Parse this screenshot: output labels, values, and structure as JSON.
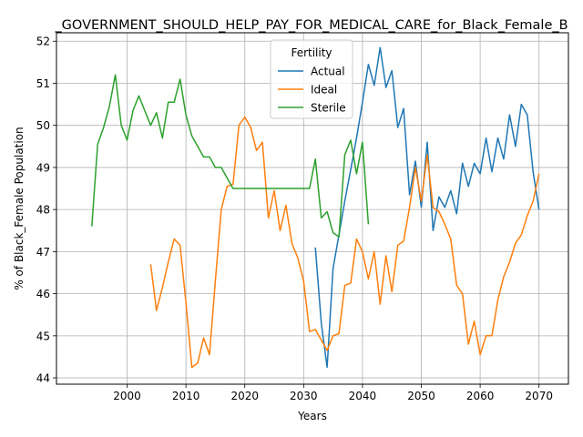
{
  "chart_data": {
    "type": "line",
    "title": "_GOVERNMENT_SHOULD_HELP_PAY_FOR_MEDICAL_CARE_for_Black_Female_B",
    "xlabel": "Years",
    "ylabel": "% of Black_Female Population",
    "xlim": [
      1988,
      2075
    ],
    "ylim": [
      43.85,
      52.2
    ],
    "xticks": [
      2000,
      2010,
      2020,
      2030,
      2040,
      2050,
      2060,
      2070
    ],
    "yticks": [
      44,
      45,
      46,
      47,
      48,
      49,
      50,
      51,
      52
    ],
    "grid": true,
    "legend": {
      "title": "Fertility",
      "placement": "upper center",
      "entries": [
        "Actual",
        "Ideal",
        "Sterile"
      ]
    },
    "series": [
      {
        "name": "Actual",
        "color": "#1f77b4",
        "x": [
          2032,
          2033,
          2034,
          2035,
          2036,
          2037,
          2038,
          2039,
          2040,
          2041,
          2042,
          2043,
          2044,
          2045,
          2046,
          2047,
          2048,
          2049,
          2050,
          2051,
          2052,
          2053,
          2054,
          2055,
          2056,
          2057,
          2058,
          2059,
          2060,
          2061,
          2062,
          2063,
          2064,
          2065,
          2066,
          2067,
          2068,
          2069,
          2070
        ],
        "y": [
          47.1,
          45.3,
          44.25,
          46.6,
          47.4,
          48.2,
          48.95,
          49.7,
          50.55,
          51.45,
          50.95,
          51.85,
          50.9,
          51.3,
          49.95,
          50.4,
          48.35,
          49.15,
          48.05,
          49.6,
          47.5,
          48.3,
          48.05,
          48.45,
          47.9,
          49.1,
          48.55,
          49.1,
          48.85,
          49.7,
          48.9,
          49.7,
          49.2,
          50.25,
          49.5,
          50.5,
          50.25,
          48.9,
          48.0
        ]
      },
      {
        "name": "Ideal",
        "color": "#ff7f0e",
        "x": [
          2004,
          2005,
          2006,
          2007,
          2008,
          2009,
          2010,
          2011,
          2012,
          2013,
          2014,
          2015,
          2016,
          2017,
          2018,
          2019,
          2020,
          2021,
          2022,
          2023,
          2024,
          2025,
          2026,
          2027,
          2028,
          2029,
          2030,
          2031,
          2032,
          2033,
          2034,
          2035,
          2036,
          2037,
          2038,
          2039,
          2040,
          2041,
          2042,
          2043,
          2044,
          2045,
          2046,
          2047,
          2048,
          2049,
          2050,
          2051,
          2052,
          2053,
          2054,
          2055,
          2056,
          2057,
          2058,
          2059,
          2060,
          2061,
          2062,
          2063,
          2064,
          2065,
          2066,
          2067,
          2068,
          2069,
          2070
        ],
        "y": [
          46.7,
          45.6,
          46.15,
          46.75,
          47.3,
          47.15,
          45.8,
          44.25,
          44.35,
          44.95,
          44.55,
          46.3,
          48.0,
          48.55,
          48.6,
          50.0,
          50.2,
          49.95,
          49.4,
          49.6,
          47.8,
          48.45,
          47.5,
          48.1,
          47.2,
          46.85,
          46.3,
          45.1,
          45.15,
          44.9,
          44.65,
          45.0,
          45.05,
          46.2,
          46.25,
          47.3,
          47.0,
          46.35,
          47.0,
          45.75,
          46.9,
          46.05,
          47.15,
          47.25,
          48.05,
          49.0,
          48.2,
          49.3,
          48.05,
          47.95,
          47.65,
          47.3,
          46.2,
          46.0,
          44.8,
          45.35,
          44.55,
          45.0,
          45.0,
          45.85,
          46.4,
          46.75,
          47.2,
          47.4,
          47.85,
          48.2,
          48.85
        ]
      },
      {
        "name": "Sterile",
        "color": "#2ca02c",
        "x": [
          1994,
          1995,
          1996,
          1997,
          1998,
          1999,
          2000,
          2001,
          2002,
          2003,
          2004,
          2005,
          2006,
          2007,
          2008,
          2009,
          2010,
          2011,
          2012,
          2013,
          2014,
          2015,
          2016,
          2017,
          2018,
          2019,
          2020,
          2021,
          2022,
          2023,
          2024,
          2025,
          2026,
          2027,
          2028,
          2029,
          2030,
          2031,
          2032,
          2033,
          2034,
          2035,
          2036,
          2037,
          2038,
          2039,
          2040,
          2041
        ],
        "y": [
          47.6,
          49.55,
          49.95,
          50.45,
          51.2,
          50.0,
          49.65,
          50.35,
          50.7,
          50.35,
          50.0,
          50.3,
          49.7,
          50.55,
          50.55,
          51.1,
          50.25,
          49.75,
          49.5,
          49.25,
          49.25,
          49.0,
          49.0,
          48.75,
          48.5,
          48.5,
          48.5,
          48.5,
          48.5,
          48.5,
          48.5,
          48.5,
          48.5,
          48.5,
          48.5,
          48.5,
          48.5,
          48.5,
          49.2,
          47.8,
          47.95,
          47.45,
          47.35,
          49.3,
          49.65,
          48.85,
          49.6,
          47.65
        ]
      }
    ]
  }
}
